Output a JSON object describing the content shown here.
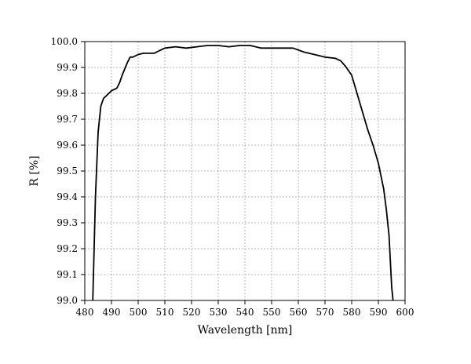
{
  "chart_data": {
    "type": "line",
    "title": "",
    "xlabel": "Wavelength [nm]",
    "ylabel": "R [%]",
    "xlim": [
      480,
      600
    ],
    "ylim": [
      99.0,
      100.0
    ],
    "grid": true,
    "legend": "none",
    "line_color": "#000000",
    "grid_color": "#b4b4b4",
    "xticks": [
      480,
      490,
      500,
      510,
      520,
      530,
      540,
      550,
      560,
      570,
      580,
      590,
      600
    ],
    "yticks": [
      99.0,
      99.1,
      99.2,
      99.3,
      99.4,
      99.5,
      99.6,
      99.7,
      99.8,
      99.9,
      100.0
    ],
    "xtick_labels": [
      "480",
      "490",
      "500",
      "510",
      "520",
      "530",
      "540",
      "550",
      "560",
      "570",
      "580",
      "590",
      "600"
    ],
    "ytick_labels": [
      "99.0",
      "99.1",
      "99.2",
      "99.3",
      "99.4",
      "99.5",
      "99.6",
      "99.7",
      "99.8",
      "99.9",
      "100.0"
    ],
    "series": [
      {
        "x": [
          483.0,
          483.5,
          484.0,
          485.0,
          486.0,
          487.0,
          488.0,
          489.0,
          490.0,
          492.0,
          493.0,
          494.0,
          496.0,
          497.0,
          498.0,
          500.0,
          502.0,
          504.0,
          506.0,
          508.0,
          510.0,
          514.0,
          518.0,
          522.0,
          526.0,
          530.0,
          534.0,
          538.0,
          542.0,
          546.0,
          550.0,
          554.0,
          558.0,
          562.0,
          566.0,
          570.0,
          574.0,
          576.0,
          578.0,
          580.0,
          582.0,
          584.0,
          586.0,
          588.0,
          590.0,
          592.0,
          593.0,
          594.0,
          594.5,
          595.0,
          595.5
        ],
        "y": [
          99.0,
          99.2,
          99.4,
          99.65,
          99.75,
          99.78,
          99.79,
          99.8,
          99.81,
          99.82,
          99.84,
          99.87,
          99.92,
          99.94,
          99.94,
          99.95,
          99.955,
          99.955,
          99.955,
          99.965,
          99.975,
          99.98,
          99.975,
          99.98,
          99.985,
          99.985,
          99.98,
          99.985,
          99.985,
          99.975,
          99.975,
          99.975,
          99.975,
          99.96,
          99.95,
          99.94,
          99.935,
          99.925,
          99.9,
          99.87,
          99.8,
          99.73,
          99.66,
          99.6,
          99.53,
          99.43,
          99.35,
          99.25,
          99.15,
          99.05,
          99.0
        ]
      }
    ]
  }
}
